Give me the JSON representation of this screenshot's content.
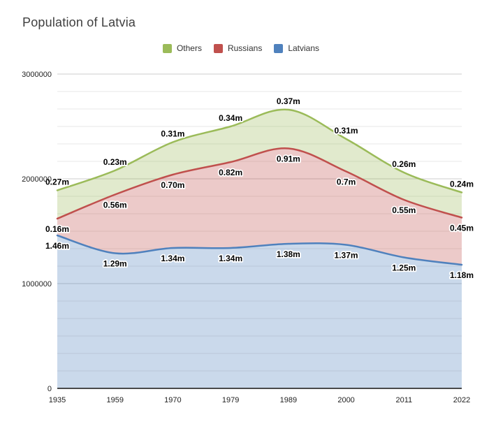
{
  "title": "Population of Latvia",
  "legend": {
    "items": [
      {
        "label": "Others",
        "color": "#9BBB59"
      },
      {
        "label": "Russians",
        "color": "#C0504D"
      },
      {
        "label": "Latvians",
        "color": "#4F81BD"
      }
    ]
  },
  "chart_data": {
    "type": "area",
    "stacked": true,
    "curve": "smooth",
    "title": "Population of Latvia",
    "xlabel": "",
    "ylabel": "",
    "categories": [
      "1935",
      "1959",
      "1970",
      "1979",
      "1989",
      "2000",
      "2011",
      "2022"
    ],
    "series": [
      {
        "name": "Latvians",
        "color": "#4F81BD",
        "fill_opacity": 0.3,
        "values": [
          1460000,
          1290000,
          1340000,
          1340000,
          1380000,
          1370000,
          1250000,
          1180000
        ],
        "labels": [
          "1.46m",
          "1.29m",
          "1.34m",
          "1.34m",
          "1.38m",
          "1.37m",
          "1.25m",
          "1.18m"
        ],
        "label_position": "below"
      },
      {
        "name": "Russians",
        "color": "#C0504D",
        "fill_opacity": 0.3,
        "values": [
          160000,
          560000,
          700000,
          820000,
          910000,
          700000,
          550000,
          450000
        ],
        "labels": [
          "0.16m",
          "0.56m",
          "0.70m",
          "0.82m",
          "0.91m",
          "0.7m",
          "0.55m",
          "0.45m"
        ],
        "label_position": "below"
      },
      {
        "name": "Others",
        "color": "#9BBB59",
        "fill_opacity": 0.3,
        "values": [
          270000,
          230000,
          310000,
          340000,
          370000,
          310000,
          260000,
          240000
        ],
        "labels": [
          "0.27m",
          "0.23m",
          "0.31m",
          "0.34m",
          "0.37m",
          "0.31m",
          "0.26m",
          "0.24m"
        ],
        "label_position": "above"
      }
    ],
    "ylim": [
      0,
      3000000
    ],
    "yticks": [
      0,
      1000000,
      2000000,
      3000000
    ],
    "ytick_labels": [
      "0",
      "1000000",
      "2000000",
      "3000000"
    ],
    "minor_gridlines_per_interval": 5,
    "grid": true,
    "legend_position": "top"
  },
  "colors": {
    "background": "#ffffff",
    "title_text": "#3f3f3f",
    "axis_text": "#222222",
    "major_gridline": "#cccccc",
    "minor_gridline": "#e7e7e7",
    "baseline": "#333333",
    "annotation_text": "#000000",
    "annotation_halo": "#ffffff"
  }
}
